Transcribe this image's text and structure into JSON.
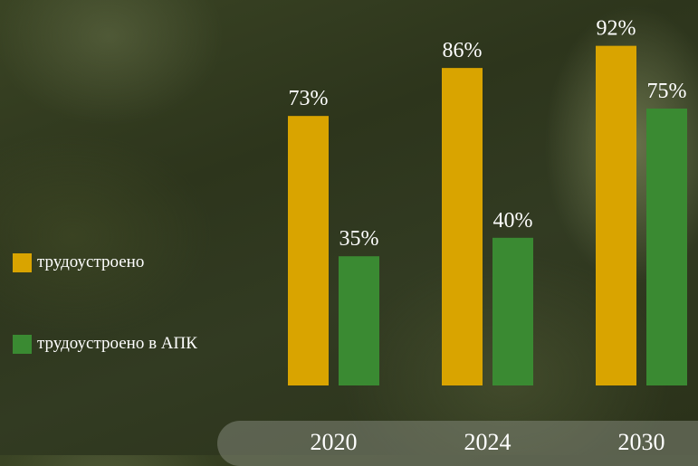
{
  "chart_data": {
    "type": "bar",
    "categories": [
      "2020",
      "2024",
      "2030"
    ],
    "series": [
      {
        "name": "трудоустроено",
        "values": [
          73,
          86,
          92
        ],
        "labels": [
          "73%",
          "86%",
          "92%"
        ],
        "color": "#d9a400"
      },
      {
        "name": "трудоустроено в АПК",
        "values": [
          35,
          40,
          75
        ],
        "labels": [
          "35%",
          "40%",
          "75%"
        ],
        "color": "#3a8a32"
      }
    ],
    "title": "",
    "xlabel": "",
    "ylabel": "",
    "ylim": [
      0,
      100
    ],
    "grid": false,
    "legend_position": "left"
  },
  "colors": {
    "label_text": "#ffffff"
  }
}
